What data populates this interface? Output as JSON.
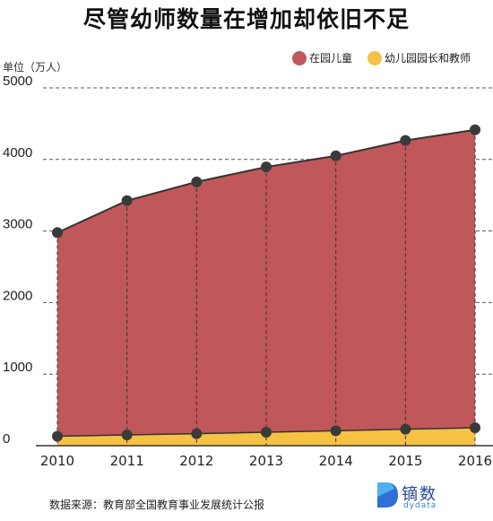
{
  "chart_data": {
    "type": "area",
    "title": "尽管幼师数量在增加却依旧不足",
    "ylabel": "单位（万人）",
    "xlabel": "",
    "categories": [
      "2010",
      "2011",
      "2012",
      "2013",
      "2014",
      "2015",
      "2016"
    ],
    "ylim": [
      0,
      5000
    ],
    "yticks": [
      "5000",
      "4000",
      "3000",
      "2000",
      "1000",
      "0"
    ],
    "ytick_values": [
      5000,
      4000,
      3000,
      2000,
      1000,
      0
    ],
    "grid": true,
    "legend_position": "top-right",
    "series": [
      {
        "name": "在园儿童",
        "color": "#c0575a",
        "values": [
          2977,
          3424,
          3686,
          3895,
          4051,
          4265,
          4414
        ]
      },
      {
        "name": "幼儿园园长和教师",
        "color": "#f6c244",
        "values": [
          131,
          150,
          167,
          188,
          208,
          230,
          250
        ]
      }
    ]
  },
  "source_text": "数据来源：教育部全国教育事业发展统计公报",
  "logo": {
    "name": "镝数",
    "sub": "dydata"
  }
}
